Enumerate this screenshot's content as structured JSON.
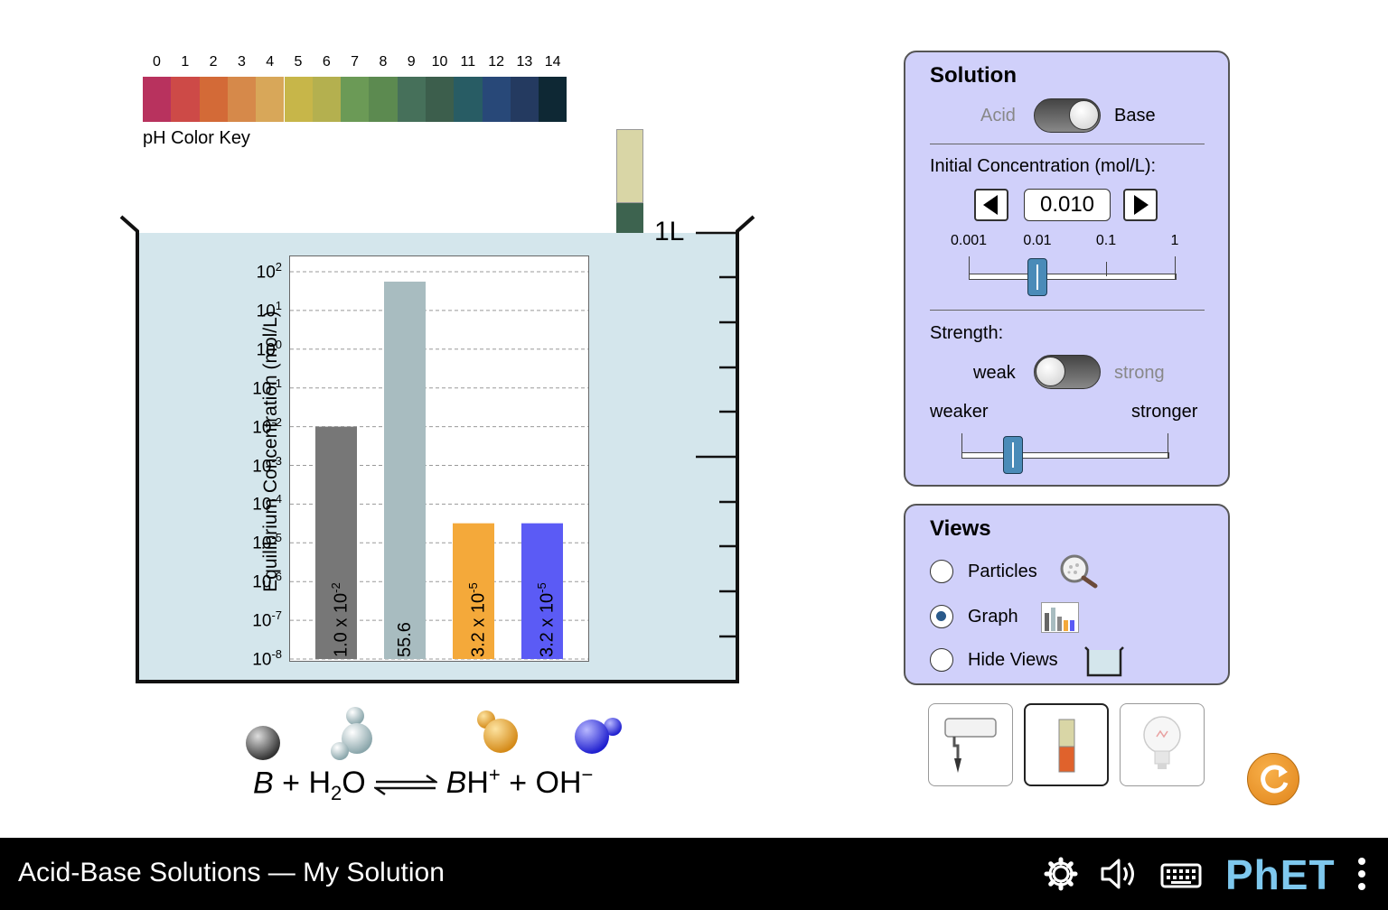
{
  "ph_key": {
    "label": "pH Color Key",
    "values": [
      "0",
      "1",
      "2",
      "3",
      "4",
      "5",
      "6",
      "7",
      "8",
      "9",
      "10",
      "11",
      "12",
      "13",
      "14"
    ],
    "colors": [
      "#b8325e",
      "#cd4a47",
      "#d36a37",
      "#d6894a",
      "#d8a759",
      "#c7b649",
      "#b4b04f",
      "#6b9a56",
      "#5c8a50",
      "#46705a",
      "#3c5e4c",
      "#285c64",
      "#284878",
      "#243a60",
      "#0e2834"
    ]
  },
  "beaker": {
    "volume_label": "1L",
    "liquid_color": "#d4e6ec"
  },
  "ph_paper": {
    "colors": [
      "#d9d6a6",
      "#3d634f",
      "#a5bfbd"
    ]
  },
  "chart_data": {
    "type": "bar",
    "ylabel": "Equilibrium Concentration (mol/L)",
    "yscale": "log",
    "ylim": [
      1e-08,
      100
    ],
    "ticks": [
      {
        "base": "10",
        "exp": "2"
      },
      {
        "base": "10",
        "exp": "1"
      },
      {
        "base": "10",
        "exp": "0"
      },
      {
        "base": "10",
        "exp": "-1"
      },
      {
        "base": "10",
        "exp": "-2"
      },
      {
        "base": "10",
        "exp": "-3"
      },
      {
        "base": "10",
        "exp": "-4"
      },
      {
        "base": "10",
        "exp": "-5"
      },
      {
        "base": "10",
        "exp": "-6"
      },
      {
        "base": "10",
        "exp": "-7"
      },
      {
        "base": "10",
        "exp": "-8"
      }
    ],
    "bars": [
      {
        "value": 0.01,
        "label_main": "1.0 x 10",
        "label_exp": "-2",
        "color": "#777777"
      },
      {
        "value": 55.6,
        "label_main": "55.6",
        "label_exp": "",
        "color": "#a8bcc0"
      },
      {
        "value": 3.2e-05,
        "label_main": "3.2 x 10",
        "label_exp": "-5",
        "color": "#f4a93a"
      },
      {
        "value": 3.2e-05,
        "label_main": "3.2 x 10",
        "label_exp": "-5",
        "color": "#5b5bf5"
      }
    ]
  },
  "reaction": {
    "B": "B",
    "plus": "+",
    "h2o_h": "H",
    "h2o_sub": "2",
    "h2o_o": "O",
    "bh_b": "B",
    "bh_h": "H",
    "bh_sup": "+",
    "oh": "OH",
    "oh_sup": "−"
  },
  "solution_panel": {
    "title": "Solution",
    "acid_label": "Acid",
    "base_label": "Base",
    "initial_conc_label": "Initial Concentration (mol/L):",
    "conc_value": "0.010",
    "conc_scale": [
      "0.001",
      "0.01",
      "0.1",
      "1"
    ],
    "conc_slider_value": 0.01,
    "strength_label": "Strength:",
    "weak_label": "weak",
    "strong_label": "strong",
    "weaker_label": "weaker",
    "stronger_label": "stronger",
    "strength_slider_fraction": 0.25
  },
  "views_panel": {
    "title": "Views",
    "options": [
      "Particles",
      "Graph",
      "Hide Views"
    ],
    "selected": "Graph"
  },
  "tools": {
    "selected": "ph-paper"
  },
  "nav": {
    "title": "Acid-Base Solutions — My Solution",
    "brand": "PhET"
  }
}
